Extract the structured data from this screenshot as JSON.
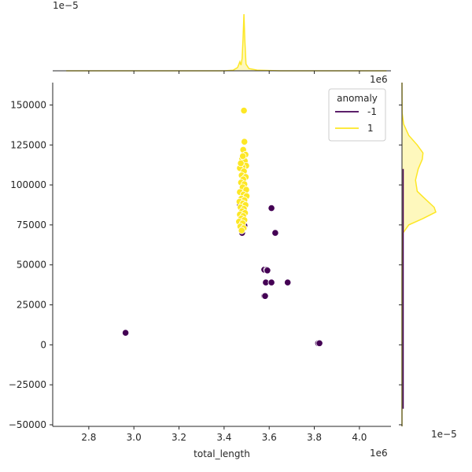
{
  "chart_data": {
    "type": "scatter",
    "title": "",
    "xlabel": "total_length",
    "ylabel": "",
    "x_offset_label": "1e6",
    "y_offset_label": "1e6",
    "top_density_offset_label": "1e−5",
    "right_density_offset_label": "1e−5",
    "xlim": [
      2.64,
      4.14
    ],
    "ylim": [
      -51000,
      164000
    ],
    "x_ticks": [
      2.8,
      3.0,
      3.2,
      3.4,
      3.6,
      3.8,
      4.0
    ],
    "x_tick_labels": [
      "2.8",
      "3.0",
      "3.2",
      "3.4",
      "3.6",
      "3.8",
      "4.0"
    ],
    "y_ticks": [
      -50000,
      -25000,
      0,
      25000,
      50000,
      75000,
      100000,
      125000,
      150000
    ],
    "y_tick_labels": [
      "−50000",
      "−25000",
      "0",
      "25000",
      "50000",
      "75000",
      "100000",
      "125000",
      "150000"
    ],
    "grid": false,
    "legend": {
      "title": "anomaly",
      "placement": "top-right",
      "entries": [
        {
          "label": "-1",
          "color": "#440154"
        },
        {
          "label": "1",
          "color": "#fde725"
        }
      ]
    },
    "series": [
      {
        "name": "-1",
        "color": "#440154",
        "points": [
          {
            "x": 2.963,
            "y": 7500
          },
          {
            "x": 3.48,
            "y": 70000
          },
          {
            "x": 3.49,
            "y": 74500
          },
          {
            "x": 3.61,
            "y": 85500
          },
          {
            "x": 3.627,
            "y": 70000
          },
          {
            "x": 3.578,
            "y": 47000
          },
          {
            "x": 3.59,
            "y": 47000
          },
          {
            "x": 3.592,
            "y": 46500
          },
          {
            "x": 3.585,
            "y": 39000
          },
          {
            "x": 3.61,
            "y": 39000
          },
          {
            "x": 3.682,
            "y": 39000
          },
          {
            "x": 3.578,
            "y": 30500
          },
          {
            "x": 3.582,
            "y": 30500
          },
          {
            "x": 3.817,
            "y": 1000
          },
          {
            "x": 3.823,
            "y": 1000
          },
          {
            "x": 3.47,
            "y": 88000
          }
        ]
      },
      {
        "name": "1",
        "color": "#fde725",
        "points": [
          {
            "x": 3.488,
            "y": 146500
          },
          {
            "x": 3.49,
            "y": 127000
          },
          {
            "x": 3.485,
            "y": 122000
          },
          {
            "x": 3.495,
            "y": 119000
          },
          {
            "x": 3.48,
            "y": 116500
          },
          {
            "x": 3.492,
            "y": 115000
          },
          {
            "x": 3.498,
            "y": 112000
          },
          {
            "x": 3.482,
            "y": 111000
          },
          {
            "x": 3.47,
            "y": 110500
          },
          {
            "x": 3.488,
            "y": 108500
          },
          {
            "x": 3.478,
            "y": 106000
          },
          {
            "x": 3.496,
            "y": 105000
          },
          {
            "x": 3.485,
            "y": 103500
          },
          {
            "x": 3.475,
            "y": 101500
          },
          {
            "x": 3.49,
            "y": 100500
          },
          {
            "x": 3.482,
            "y": 98500
          },
          {
            "x": 3.498,
            "y": 97000
          },
          {
            "x": 3.47,
            "y": 95500
          },
          {
            "x": 3.486,
            "y": 94000
          },
          {
            "x": 3.5,
            "y": 93000
          },
          {
            "x": 3.477,
            "y": 91500
          },
          {
            "x": 3.49,
            "y": 90500
          },
          {
            "x": 3.468,
            "y": 89500
          },
          {
            "x": 3.484,
            "y": 88500
          },
          {
            "x": 3.495,
            "y": 87500
          },
          {
            "x": 3.473,
            "y": 86000
          },
          {
            "x": 3.488,
            "y": 85000
          },
          {
            "x": 3.48,
            "y": 83500
          },
          {
            "x": 3.493,
            "y": 82500
          },
          {
            "x": 3.47,
            "y": 81500
          },
          {
            "x": 3.485,
            "y": 80500
          },
          {
            "x": 3.476,
            "y": 79000
          },
          {
            "x": 3.49,
            "y": 78000
          },
          {
            "x": 3.466,
            "y": 77000
          },
          {
            "x": 3.482,
            "y": 76000
          },
          {
            "x": 3.472,
            "y": 74000
          },
          {
            "x": 3.487,
            "y": 73000
          },
          {
            "x": 3.478,
            "y": 71500
          },
          {
            "x": 3.483,
            "y": 118000
          },
          {
            "x": 3.474,
            "y": 113500
          }
        ]
      }
    ],
    "marginal_x_density": [
      {
        "x": 2.7,
        "y": 0.0
      },
      {
        "x": 3.4,
        "y": 0.0
      },
      {
        "x": 3.44,
        "y": 0.01
      },
      {
        "x": 3.46,
        "y": 0.06
      },
      {
        "x": 3.47,
        "y": 0.16
      },
      {
        "x": 3.475,
        "y": 0.1
      },
      {
        "x": 3.48,
        "y": 0.22
      },
      {
        "x": 3.484,
        "y": 0.55
      },
      {
        "x": 3.488,
        "y": 1.0
      },
      {
        "x": 3.492,
        "y": 0.55
      },
      {
        "x": 3.497,
        "y": 0.12
      },
      {
        "x": 3.51,
        "y": 0.04
      },
      {
        "x": 3.55,
        "y": 0.01
      },
      {
        "x": 3.65,
        "y": 0.0
      },
      {
        "x": 4.12,
        "y": 0.0
      }
    ],
    "marginal_y_density": [
      {
        "y": 164000,
        "v": 0.0
      },
      {
        "y": 145000,
        "v": 0.005
      },
      {
        "y": 138000,
        "v": 0.05
      },
      {
        "y": 131000,
        "v": 0.2
      },
      {
        "y": 125000,
        "v": 0.45
      },
      {
        "y": 120000,
        "v": 0.62
      },
      {
        "y": 116000,
        "v": 0.6
      },
      {
        "y": 110000,
        "v": 0.48
      },
      {
        "y": 103000,
        "v": 0.4
      },
      {
        "y": 96000,
        "v": 0.45
      },
      {
        "y": 91000,
        "v": 0.7
      },
      {
        "y": 86000,
        "v": 0.95
      },
      {
        "y": 83000,
        "v": 1.0
      },
      {
        "y": 79000,
        "v": 0.62
      },
      {
        "y": 75000,
        "v": 0.2
      },
      {
        "y": 70000,
        "v": 0.03
      },
      {
        "y": 60000,
        "v": 0.005
      },
      {
        "y": 40000,
        "v": 0.0
      },
      {
        "y": -51000,
        "v": 0.0
      }
    ]
  }
}
